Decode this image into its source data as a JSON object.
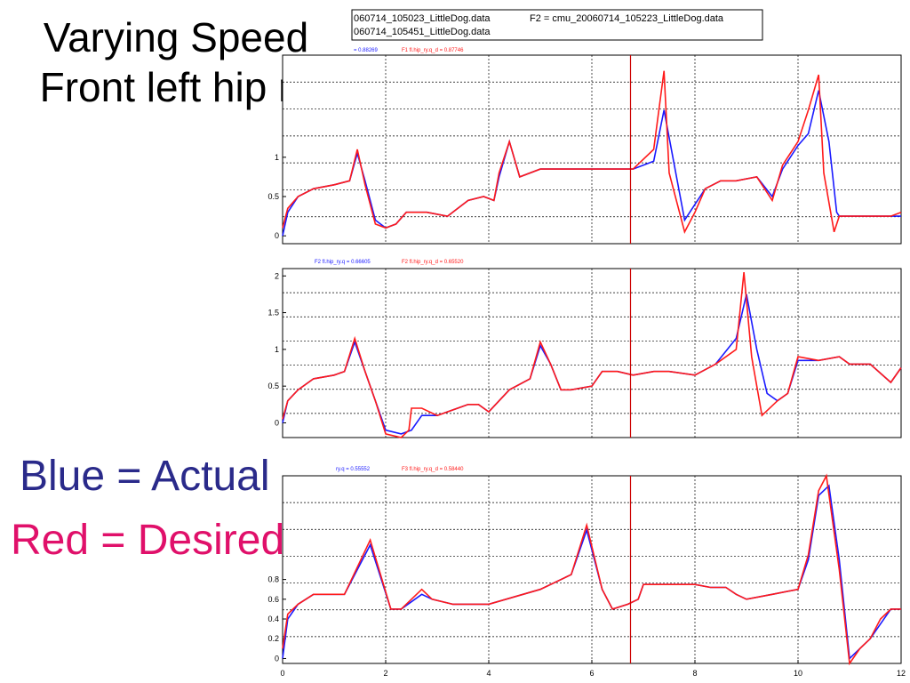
{
  "slide": {
    "title_line1": "Varying Speed",
    "title_line2": "Front left hip ry",
    "legend_actual": "Blue = Actual",
    "legend_desired": "Red = Desired"
  },
  "file_box": {
    "line1_a": "060714_105023_LittleDog.data",
    "line1_b": "F2 = cmu_20060714_105223_LittleDog.data",
    "line2": "060714_105451_LittleDog.data"
  },
  "colors": {
    "actual": "#1a1aff",
    "desired": "#ff1a1a",
    "cursor": "#cc0000"
  },
  "chart_data": [
    {
      "type": "line",
      "series_labels": [
        "= 0.88269",
        "F1 fl.hip_ry.q_d = 0.87746"
      ],
      "xlim": [
        0,
        12
      ],
      "ylim": [
        -0.1,
        2.3
      ],
      "yticks": [
        0,
        0.5,
        1
      ],
      "ytick_labels": [
        "0",
        "0.5",
        "1"
      ],
      "cursor_x": 6.75,
      "series": [
        {
          "name": "actual",
          "x": [
            0,
            0.1,
            0.3,
            0.6,
            1.0,
            1.3,
            1.45,
            1.6,
            1.8,
            2.0,
            2.2,
            2.4,
            2.8,
            3.2,
            3.6,
            3.9,
            4.1,
            4.2,
            4.4,
            4.6,
            5.0,
            5.4,
            5.6,
            6.0,
            6.4,
            6.6,
            6.8,
            7.2,
            7.4,
            7.6,
            7.8,
            8.0,
            8.2,
            8.5,
            8.8,
            9.2,
            9.5,
            9.7,
            10.0,
            10.2,
            10.4,
            10.6,
            10.75,
            10.8,
            11.0,
            11.4,
            11.8,
            12.0
          ],
          "y": [
            0.0,
            0.3,
            0.5,
            0.6,
            0.65,
            0.7,
            1.05,
            0.7,
            0.2,
            0.1,
            0.15,
            0.3,
            0.3,
            0.25,
            0.45,
            0.5,
            0.45,
            0.75,
            1.2,
            0.75,
            0.85,
            0.85,
            0.85,
            0.85,
            0.85,
            0.85,
            0.85,
            0.95,
            1.6,
            0.9,
            0.2,
            0.4,
            0.6,
            0.7,
            0.7,
            0.75,
            0.5,
            0.85,
            1.15,
            1.3,
            1.85,
            1.2,
            0.3,
            0.25,
            0.25,
            0.25,
            0.25,
            0.25
          ]
        },
        {
          "name": "desired",
          "x": [
            0,
            0.1,
            0.3,
            0.6,
            1.0,
            1.3,
            1.45,
            1.6,
            1.8,
            2.0,
            2.2,
            2.4,
            2.8,
            3.2,
            3.6,
            3.9,
            4.1,
            4.2,
            4.4,
            4.6,
            5.0,
            5.4,
            5.6,
            6.0,
            6.4,
            6.6,
            6.8,
            7.2,
            7.4,
            7.5,
            7.8,
            8.0,
            8.2,
            8.5,
            8.8,
            9.2,
            9.5,
            9.7,
            10.0,
            10.2,
            10.4,
            10.5,
            10.7,
            10.8,
            11.0,
            11.4,
            11.8,
            12.0
          ],
          "y": [
            0.1,
            0.35,
            0.5,
            0.6,
            0.65,
            0.7,
            1.1,
            0.65,
            0.15,
            0.1,
            0.15,
            0.3,
            0.3,
            0.25,
            0.45,
            0.5,
            0.45,
            0.8,
            1.2,
            0.75,
            0.85,
            0.85,
            0.85,
            0.85,
            0.85,
            0.85,
            0.85,
            1.1,
            2.1,
            0.8,
            0.05,
            0.3,
            0.6,
            0.7,
            0.7,
            0.75,
            0.45,
            0.9,
            1.2,
            1.6,
            2.05,
            0.8,
            0.05,
            0.25,
            0.25,
            0.25,
            0.25,
            0.3
          ]
        }
      ]
    },
    {
      "type": "line",
      "series_labels": [
        "F2 fl.hip_ry.q = 0.66605",
        "F2 fl.hip_ry.q_d = 0.65520"
      ],
      "xlim": [
        0,
        12
      ],
      "ylim": [
        -0.2,
        2.1
      ],
      "yticks": [
        0,
        0.5,
        1,
        1.5,
        2
      ],
      "ytick_labels": [
        "0",
        "0.5",
        "1",
        "1.5",
        "2"
      ],
      "cursor_x": 6.75,
      "series": [
        {
          "name": "actual",
          "x": [
            0,
            0.1,
            0.3,
            0.6,
            1.0,
            1.2,
            1.4,
            1.6,
            1.8,
            2.0,
            2.3,
            2.5,
            2.7,
            3.0,
            3.6,
            3.8,
            4.0,
            4.4,
            4.8,
            5.0,
            5.2,
            5.4,
            5.6,
            6.0,
            6.2,
            6.5,
            6.8,
            7.2,
            7.5,
            8.0,
            8.4,
            8.8,
            9.0,
            9.2,
            9.4,
            9.6,
            9.8,
            10.0,
            10.4,
            10.8,
            11.0,
            11.4,
            11.8,
            12.0
          ],
          "y": [
            0.0,
            0.3,
            0.45,
            0.6,
            0.65,
            0.7,
            1.1,
            0.7,
            0.3,
            -0.1,
            -0.15,
            -0.1,
            0.1,
            0.1,
            0.25,
            0.25,
            0.15,
            0.45,
            0.6,
            1.05,
            0.8,
            0.45,
            0.45,
            0.5,
            0.7,
            0.7,
            0.65,
            0.7,
            0.7,
            0.65,
            0.8,
            1.15,
            1.75,
            1.0,
            0.4,
            0.3,
            0.4,
            0.85,
            0.85,
            0.9,
            0.8,
            0.8,
            0.55,
            0.75
          ]
        },
        {
          "name": "desired",
          "x": [
            0,
            0.1,
            0.3,
            0.6,
            1.0,
            1.2,
            1.4,
            1.6,
            1.8,
            2.0,
            2.3,
            2.45,
            2.5,
            2.7,
            3.0,
            3.6,
            3.8,
            4.0,
            4.4,
            4.8,
            5.0,
            5.2,
            5.4,
            5.6,
            6.0,
            6.2,
            6.5,
            6.8,
            7.2,
            7.5,
            8.0,
            8.4,
            8.8,
            8.95,
            9.1,
            9.3,
            9.6,
            9.8,
            10.0,
            10.4,
            10.8,
            11.0,
            11.4,
            11.8,
            12.0
          ],
          "y": [
            0.05,
            0.3,
            0.45,
            0.6,
            0.65,
            0.7,
            1.15,
            0.7,
            0.3,
            -0.15,
            -0.2,
            -0.1,
            0.2,
            0.2,
            0.1,
            0.25,
            0.25,
            0.15,
            0.45,
            0.6,
            1.1,
            0.8,
            0.45,
            0.45,
            0.5,
            0.7,
            0.7,
            0.65,
            0.7,
            0.7,
            0.65,
            0.8,
            1.0,
            2.05,
            0.9,
            0.1,
            0.3,
            0.4,
            0.9,
            0.85,
            0.9,
            0.8,
            0.8,
            0.55,
            0.75
          ]
        }
      ]
    },
    {
      "type": "line",
      "series_labels": [
        "ry.q = 0.55552",
        "F3 fl.hip_ry.q_d = 0.58440"
      ],
      "xlim": [
        0,
        12
      ],
      "ylim": [
        -0.05,
        1.85
      ],
      "yticks": [
        0,
        0.2,
        0.4,
        0.6,
        0.8
      ],
      "ytick_labels": [
        "0",
        "0.2",
        "0.4",
        "0.6",
        "0.8"
      ],
      "xticks": [
        0,
        2,
        4,
        6,
        8,
        10,
        12
      ],
      "xtick_labels": [
        "0",
        "2",
        "4",
        "6",
        "8",
        "10",
        "12"
      ],
      "cursor_x": 6.75,
      "series": [
        {
          "name": "actual",
          "x": [
            0,
            0.1,
            0.3,
            0.6,
            1.0,
            1.2,
            1.7,
            2.1,
            2.3,
            2.7,
            2.9,
            3.3,
            3.5,
            4.0,
            5.0,
            5.6,
            5.9,
            6.2,
            6.4,
            6.7,
            6.9,
            7.0,
            7.3,
            7.6,
            8.0,
            8.3,
            8.6,
            8.8,
            9.0,
            9.5,
            10.0,
            10.2,
            10.4,
            10.6,
            10.8,
            11.0,
            11.2,
            11.4,
            11.6,
            11.8,
            12.0
          ],
          "y": [
            0.0,
            0.4,
            0.55,
            0.65,
            0.65,
            0.65,
            1.15,
            0.5,
            0.5,
            0.65,
            0.6,
            0.55,
            0.55,
            0.55,
            0.7,
            0.85,
            1.3,
            0.7,
            0.5,
            0.55,
            0.6,
            0.75,
            0.75,
            0.75,
            0.75,
            0.72,
            0.72,
            0.65,
            0.6,
            0.65,
            0.7,
            1.0,
            1.65,
            1.75,
            1.0,
            0.0,
            0.1,
            0.2,
            0.35,
            0.5,
            0.5
          ]
        },
        {
          "name": "desired",
          "x": [
            0,
            0.1,
            0.3,
            0.6,
            1.0,
            1.2,
            1.7,
            2.1,
            2.3,
            2.7,
            2.9,
            3.3,
            3.5,
            4.0,
            5.0,
            5.6,
            5.9,
            6.2,
            6.4,
            6.7,
            6.9,
            7.0,
            7.3,
            7.6,
            8.0,
            8.3,
            8.6,
            8.8,
            9.0,
            9.5,
            10.0,
            10.2,
            10.4,
            10.55,
            10.8,
            11.0,
            11.2,
            11.4,
            11.6,
            11.8,
            12.0
          ],
          "y": [
            0.1,
            0.45,
            0.55,
            0.65,
            0.65,
            0.65,
            1.2,
            0.5,
            0.5,
            0.7,
            0.6,
            0.55,
            0.55,
            0.55,
            0.7,
            0.85,
            1.35,
            0.7,
            0.5,
            0.55,
            0.6,
            0.75,
            0.75,
            0.75,
            0.75,
            0.72,
            0.72,
            0.65,
            0.6,
            0.65,
            0.7,
            1.05,
            1.7,
            1.85,
            0.9,
            -0.05,
            0.1,
            0.2,
            0.4,
            0.5,
            0.5
          ]
        }
      ]
    }
  ]
}
